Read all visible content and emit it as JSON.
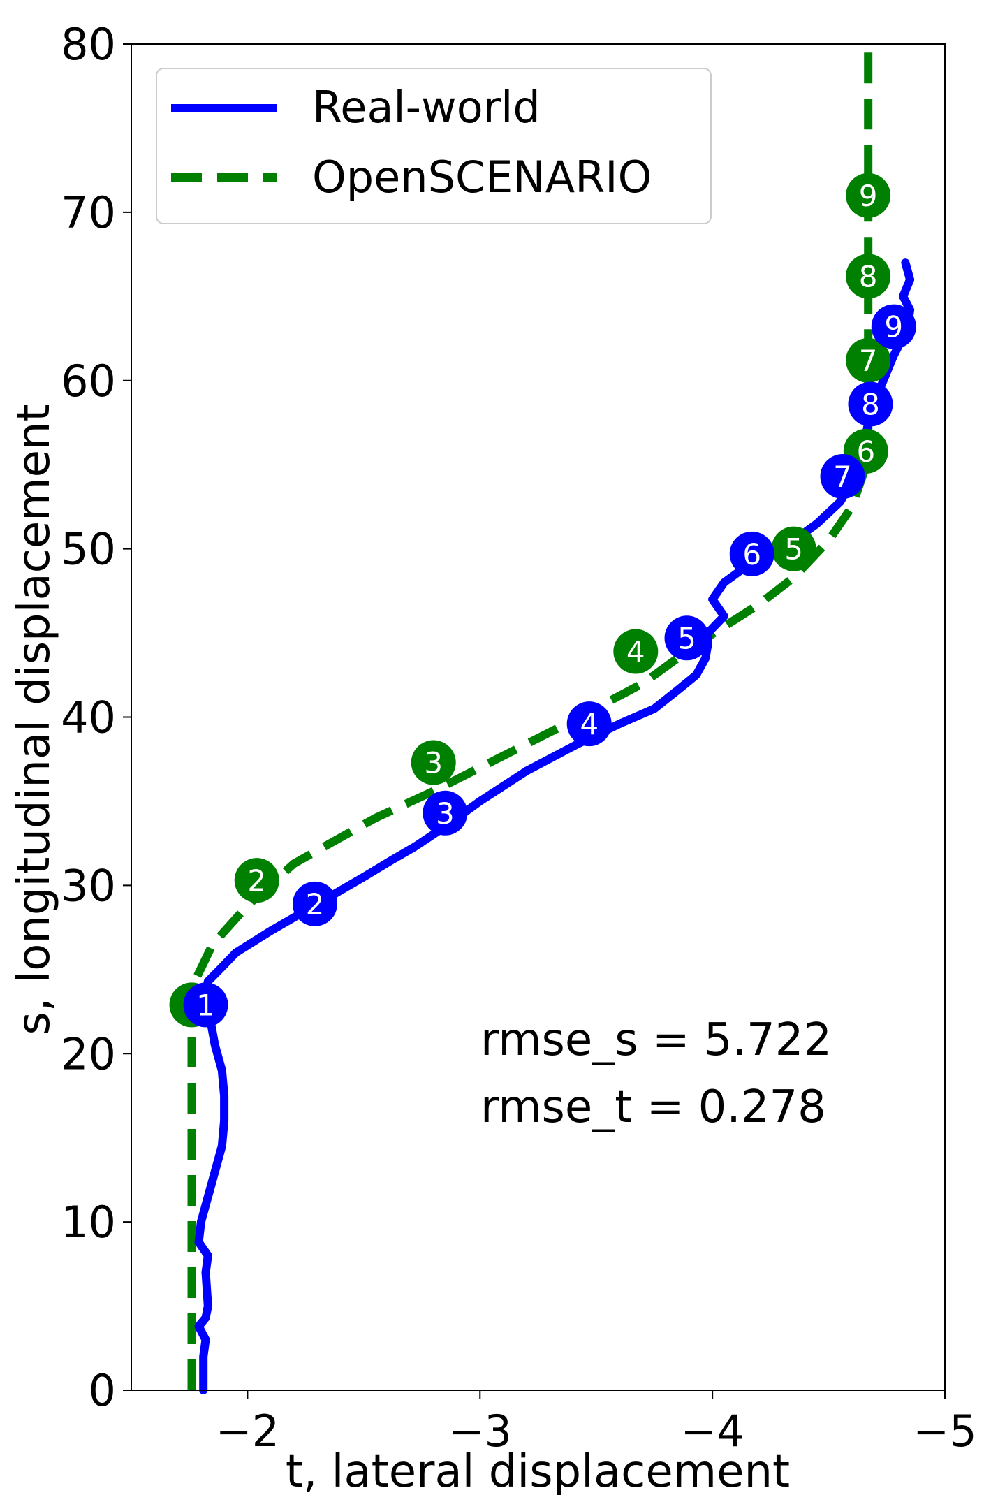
{
  "chart_data": {
    "type": "line",
    "xlabel": "t, lateral displacement",
    "ylabel": "s, longitudinal displacement",
    "xlim": [
      -1.5,
      -5
    ],
    "ylim": [
      0,
      80
    ],
    "x_ticks": [
      -2,
      -3,
      -4,
      -5
    ],
    "x_tick_labels": [
      "−2",
      "−3",
      "−4",
      "−5"
    ],
    "y_ticks": [
      0,
      10,
      20,
      30,
      40,
      50,
      60,
      70,
      80
    ],
    "y_tick_labels": [
      "0",
      "10",
      "20",
      "30",
      "40",
      "50",
      "60",
      "70",
      "80"
    ],
    "grid": false,
    "legend_position": "top-left",
    "series": [
      {
        "name": "Real-world",
        "color": "#0000ff",
        "style": "solid",
        "points": [
          [
            -1.81,
            0
          ],
          [
            -1.81,
            2
          ],
          [
            -1.82,
            3
          ],
          [
            -1.79,
            3.8
          ],
          [
            -1.82,
            4.3
          ],
          [
            -1.83,
            5
          ],
          [
            -1.82,
            7
          ],
          [
            -1.83,
            8
          ],
          [
            -1.79,
            8.8
          ],
          [
            -1.8,
            10
          ],
          [
            -1.82,
            11
          ],
          [
            -1.86,
            13
          ],
          [
            -1.89,
            14.5
          ],
          [
            -1.9,
            16
          ],
          [
            -1.9,
            17.5
          ],
          [
            -1.89,
            19
          ],
          [
            -1.86,
            20.5
          ],
          [
            -1.84,
            22
          ],
          [
            -1.82,
            23.5
          ],
          [
            -1.83,
            24.3
          ],
          [
            -1.88,
            25
          ],
          [
            -1.95,
            26
          ],
          [
            -2.1,
            27.3
          ],
          [
            -2.3,
            28.9
          ],
          [
            -2.5,
            30.5
          ],
          [
            -2.62,
            31.5
          ],
          [
            -2.72,
            32.3
          ],
          [
            -2.85,
            33.5
          ],
          [
            -3.0,
            35
          ],
          [
            -3.2,
            36.8
          ],
          [
            -3.42,
            38.4
          ],
          [
            -3.6,
            39.6
          ],
          [
            -3.75,
            40.5
          ],
          [
            -3.85,
            41.6
          ],
          [
            -3.93,
            42.5
          ],
          [
            -3.97,
            43.5
          ],
          [
            -3.98,
            44.3
          ],
          [
            -3.98,
            45
          ],
          [
            -4.05,
            46
          ],
          [
            -4.0,
            47
          ],
          [
            -4.05,
            48
          ],
          [
            -4.15,
            49
          ],
          [
            -4.25,
            49.7
          ],
          [
            -4.35,
            50.5
          ],
          [
            -4.45,
            51.5
          ],
          [
            -4.55,
            52.8
          ],
          [
            -4.61,
            54.3
          ],
          [
            -4.65,
            56
          ],
          [
            -4.67,
            57.5
          ],
          [
            -4.68,
            58.6
          ],
          [
            -4.72,
            59.5
          ],
          [
            -4.75,
            60.5
          ],
          [
            -4.78,
            61.5
          ],
          [
            -4.81,
            62.3
          ],
          [
            -4.84,
            63.2
          ],
          [
            -4.85,
            64.2
          ],
          [
            -4.82,
            65
          ],
          [
            -4.85,
            66
          ],
          [
            -4.83,
            67
          ]
        ],
        "markers": [
          {
            "label": "1",
            "t": -1.82,
            "s": 22.9
          },
          {
            "label": "2",
            "t": -2.29,
            "s": 28.9
          },
          {
            "label": "3",
            "t": -2.85,
            "s": 34.3
          },
          {
            "label": "4",
            "t": -3.47,
            "s": 39.6
          },
          {
            "label": "5",
            "t": -3.89,
            "s": 44.7
          },
          {
            "label": "6",
            "t": -4.17,
            "s": 49.7
          },
          {
            "label": "7",
            "t": -4.56,
            "s": 54.3
          },
          {
            "label": "8",
            "t": -4.68,
            "s": 58.6
          },
          {
            "label": "9",
            "t": -4.78,
            "s": 63.2
          }
        ]
      },
      {
        "name": "OpenSCENARIO",
        "color": "#008000",
        "style": "dashed",
        "points": [
          [
            -1.76,
            0
          ],
          [
            -1.76,
            10
          ],
          [
            -1.76,
            20
          ],
          [
            -1.76,
            22.9
          ],
          [
            -1.78,
            24.5
          ],
          [
            -1.85,
            26.5
          ],
          [
            -2.0,
            28.8
          ],
          [
            -2.2,
            31.3
          ],
          [
            -2.55,
            34
          ],
          [
            -2.8,
            35.6
          ],
          [
            -3.1,
            37.7
          ],
          [
            -3.4,
            39.8
          ],
          [
            -3.7,
            42
          ],
          [
            -3.95,
            44.5
          ],
          [
            -4.2,
            46.7
          ],
          [
            -4.35,
            48.3
          ],
          [
            -4.5,
            50.5
          ],
          [
            -4.6,
            52.5
          ],
          [
            -4.65,
            54.5
          ],
          [
            -4.67,
            56
          ],
          [
            -4.67,
            60
          ],
          [
            -4.67,
            70
          ],
          [
            -4.67,
            80
          ]
        ],
        "markers": [
          {
            "label": "1",
            "t": -1.76,
            "s": 22.9
          },
          {
            "label": "2",
            "t": -2.04,
            "s": 30.3
          },
          {
            "label": "3",
            "t": -2.8,
            "s": 37.3
          },
          {
            "label": "4",
            "t": -3.67,
            "s": 43.9
          },
          {
            "label": "5",
            "t": -4.35,
            "s": 50
          },
          {
            "label": "6",
            "t": -4.66,
            "s": 55.8
          },
          {
            "label": "7",
            "t": -4.67,
            "s": 61.2
          },
          {
            "label": "8",
            "t": -4.67,
            "s": 66.2
          },
          {
            "label": "9",
            "t": -4.67,
            "s": 71
          }
        ]
      }
    ],
    "annotations": [
      "rmse_s = 5.722",
      "rmse_t = 0.278"
    ]
  }
}
